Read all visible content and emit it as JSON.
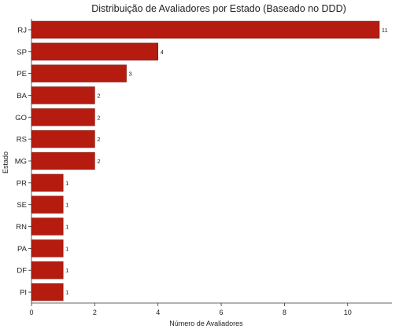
{
  "chart_data": {
    "type": "bar",
    "orientation": "horizontal",
    "title": "Distribuição de Avaliadores por Estado (Baseado no DDD)",
    "xlabel": "Número de Avaliadores",
    "ylabel": "Estado",
    "categories": [
      "RJ",
      "SP",
      "PE",
      "BA",
      "GO",
      "RS",
      "MG",
      "PR",
      "SE",
      "RN",
      "PA",
      "DF",
      "PI"
    ],
    "values": [
      11,
      4,
      3,
      2,
      2,
      2,
      2,
      1,
      1,
      1,
      1,
      1,
      1
    ],
    "data_labels": [
      "11",
      "4",
      "3",
      "2",
      "2",
      "2",
      "2",
      "1",
      "1",
      "1",
      "1",
      "1",
      "1"
    ],
    "xlim": [
      0,
      11.4
    ],
    "xticks": [
      0,
      2,
      4,
      6,
      8,
      10
    ],
    "xtick_labels": [
      "0",
      "2",
      "4",
      "6",
      "8",
      "10"
    ],
    "grid": false,
    "legend": "none",
    "bar_color": "#b51c0f",
    "bar_edge_color": "#7a0f07"
  }
}
